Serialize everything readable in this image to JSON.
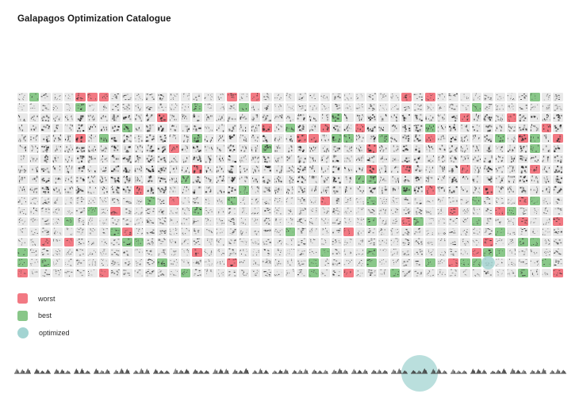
{
  "title": "Galapagos Optimization Catalogue",
  "colors": {
    "worst": "#f27983",
    "best": "#89c789",
    "optimized": "#a3d4d2",
    "cell_bg": "#e9e9e9",
    "dot": "#282828",
    "thumb": "#3d3d3d"
  },
  "grid": {
    "columns": 47,
    "rows": 18,
    "worst_cells": [
      [
        6,
        1
      ],
      [
        7,
        1
      ],
      [
        8,
        1
      ],
      [
        19,
        1
      ],
      [
        21,
        1
      ],
      [
        34,
        1
      ],
      [
        36,
        1
      ],
      [
        13,
        3
      ],
      [
        39,
        3
      ],
      [
        43,
        3
      ],
      [
        22,
        4
      ],
      [
        27,
        4
      ],
      [
        30,
        4
      ],
      [
        46,
        4
      ],
      [
        6,
        5
      ],
      [
        25,
        5
      ],
      [
        26,
        5
      ],
      [
        36,
        5
      ],
      [
        44,
        5
      ],
      [
        47,
        5
      ],
      [
        14,
        6
      ],
      [
        31,
        6
      ],
      [
        16,
        8
      ],
      [
        31,
        8
      ],
      [
        34,
        8
      ],
      [
        39,
        8
      ],
      [
        45,
        8
      ],
      [
        11,
        10
      ],
      [
        36,
        10
      ],
      [
        41,
        10
      ],
      [
        14,
        11
      ],
      [
        27,
        11
      ],
      [
        44,
        11
      ],
      [
        9,
        12
      ],
      [
        38,
        12
      ],
      [
        42,
        12
      ],
      [
        34,
        13
      ],
      [
        44,
        13
      ],
      [
        47,
        13
      ],
      [
        10,
        14
      ],
      [
        29,
        14
      ],
      [
        3,
        15
      ],
      [
        5,
        15
      ],
      [
        41,
        15
      ],
      [
        16,
        16
      ],
      [
        40,
        16
      ],
      [
        19,
        17
      ],
      [
        38,
        17
      ],
      [
        1,
        18
      ],
      [
        8,
        18
      ],
      [
        29,
        18
      ],
      [
        47,
        18
      ]
    ],
    "best_cells": [
      [
        2,
        1
      ],
      [
        45,
        1
      ],
      [
        6,
        2
      ],
      [
        16,
        2
      ],
      [
        20,
        2
      ],
      [
        40,
        2
      ],
      [
        28,
        3
      ],
      [
        10,
        4
      ],
      [
        24,
        4
      ],
      [
        36,
        4
      ],
      [
        8,
        5
      ],
      [
        16,
        5
      ],
      [
        28,
        5
      ],
      [
        29,
        5
      ],
      [
        32,
        5
      ],
      [
        42,
        5
      ],
      [
        45,
        5
      ],
      [
        22,
        6
      ],
      [
        45,
        6
      ],
      [
        15,
        9
      ],
      [
        30,
        9
      ],
      [
        31,
        9
      ],
      [
        20,
        10
      ],
      [
        34,
        10
      ],
      [
        12,
        11
      ],
      [
        19,
        11
      ],
      [
        31,
        11
      ],
      [
        40,
        11
      ],
      [
        45,
        11
      ],
      [
        7,
        12
      ],
      [
        16,
        12
      ],
      [
        43,
        12
      ],
      [
        5,
        13
      ],
      [
        31,
        13
      ],
      [
        35,
        13
      ],
      [
        40,
        13
      ],
      [
        9,
        14
      ],
      [
        24,
        14
      ],
      [
        42,
        14
      ],
      [
        10,
        15
      ],
      [
        11,
        15
      ],
      [
        44,
        15
      ],
      [
        45,
        15
      ],
      [
        1,
        16
      ],
      [
        27,
        16
      ],
      [
        31,
        16
      ],
      [
        41,
        16
      ],
      [
        42,
        16
      ],
      [
        1,
        17
      ],
      [
        3,
        17
      ],
      [
        13,
        17
      ],
      [
        26,
        17
      ],
      [
        31,
        17
      ],
      [
        36,
        17
      ],
      [
        39,
        17
      ],
      [
        40,
        17
      ],
      [
        46,
        17
      ],
      [
        15,
        18
      ],
      [
        26,
        18
      ],
      [
        33,
        18
      ],
      [
        44,
        18
      ]
    ],
    "optimized_cell": [
      41,
      17
    ]
  },
  "legend": {
    "items": [
      {
        "label": "worst",
        "swatch": "square",
        "color_key": "worst"
      },
      {
        "label": "best",
        "swatch": "square",
        "color_key": "best"
      },
      {
        "label": "optimized",
        "swatch": "circle",
        "color_key": "optimized"
      }
    ]
  },
  "strip": {
    "count": 28,
    "optimized_index": 21
  }
}
